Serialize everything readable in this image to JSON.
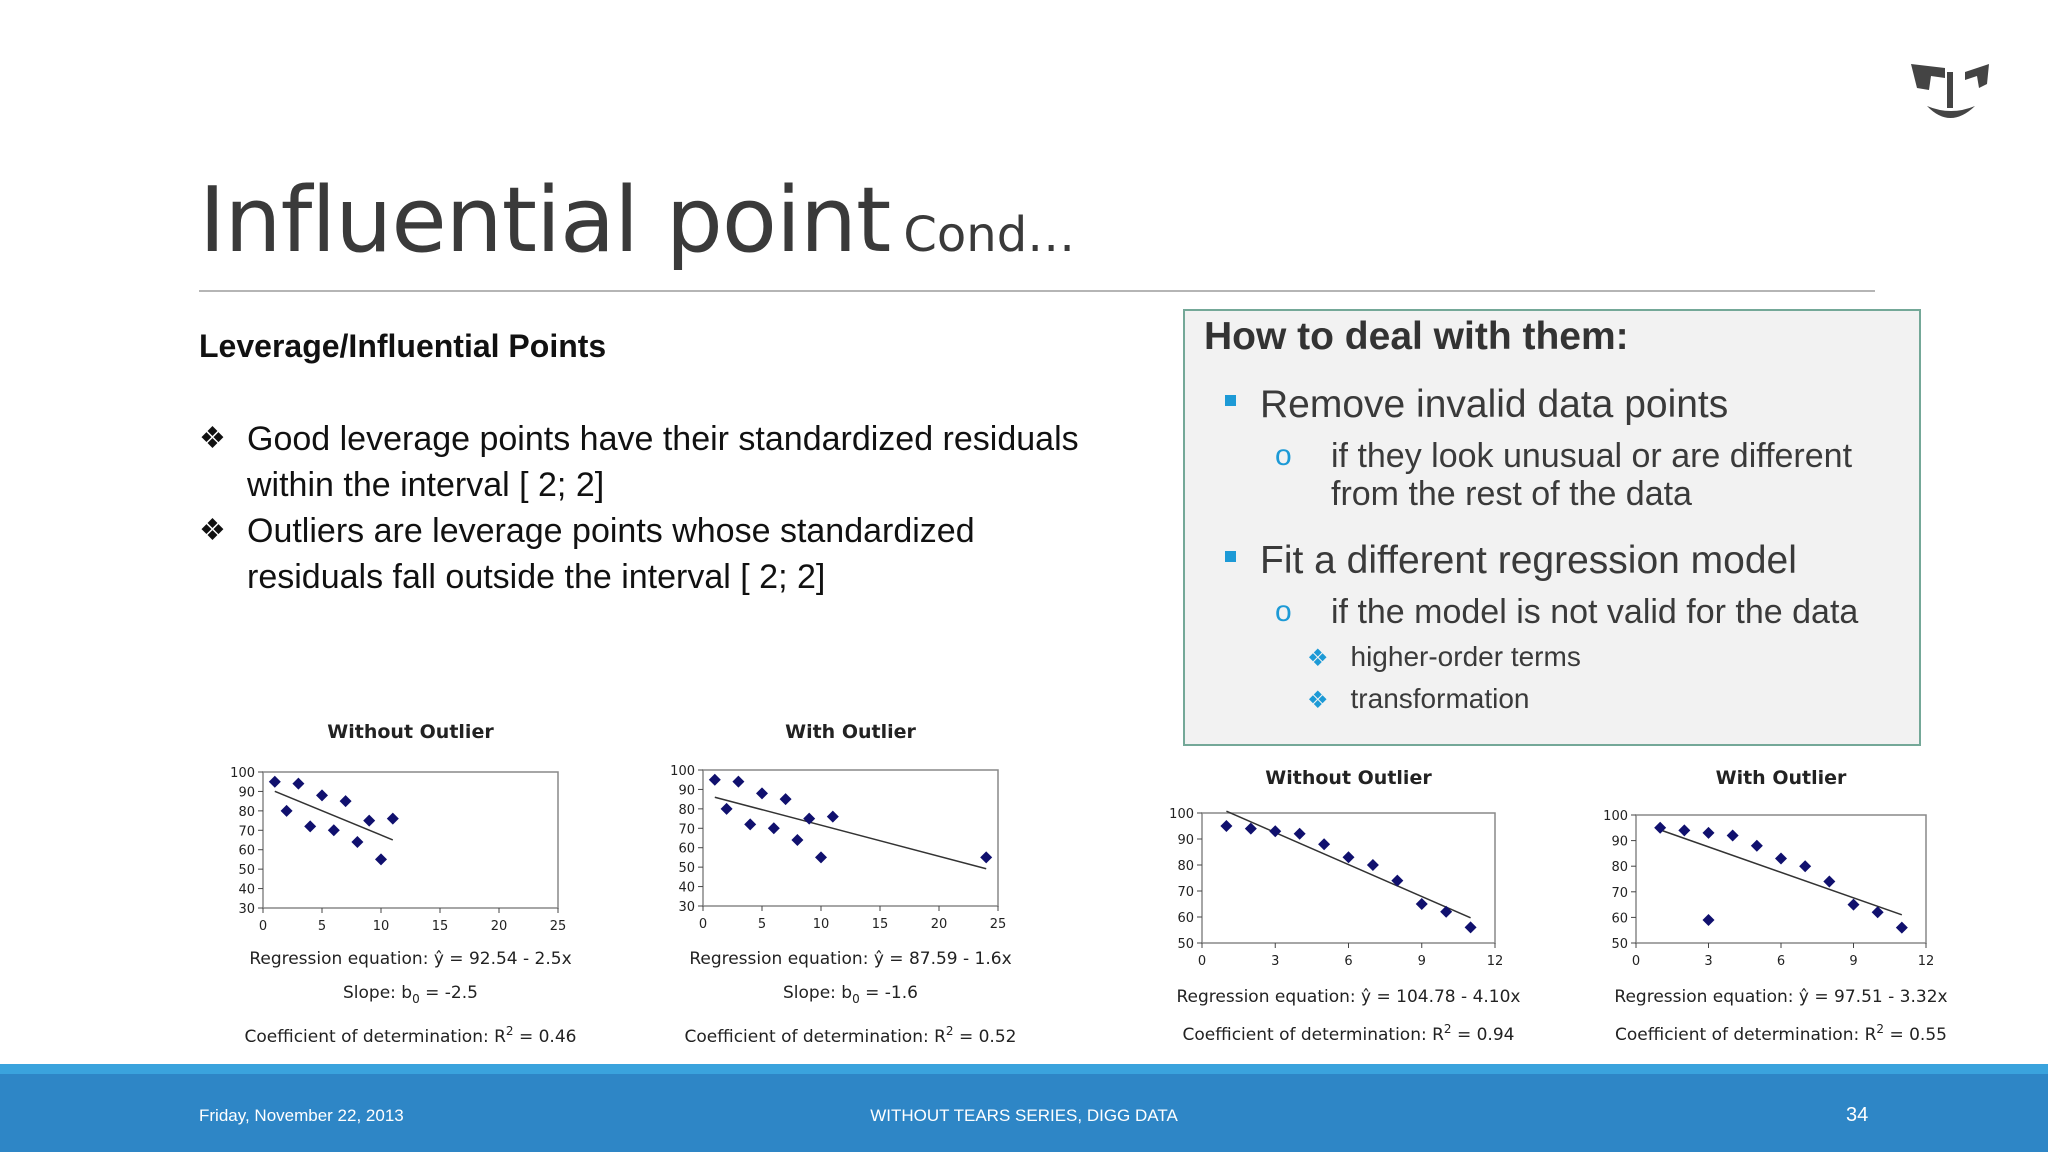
{
  "slide": {
    "title": "Influential point",
    "title_suffix": "Cond…",
    "heading": "Leverage/Influential Points",
    "bullets": [
      {
        "marker": "❖",
        "text": "Good leverage points have their standardized residuals within the interval [ 2; 2]"
      },
      {
        "marker": "❖",
        "text": "Outliers are leverage points whose standardized residuals fall outside the interval [ 2; 2]"
      }
    ],
    "box": {
      "heading": "How to deal with them:",
      "item1": "Remove invalid data points",
      "item1_sub": "if they look unusual or are different from the rest of the data",
      "item2": "Fit a different regression model",
      "item2_sub": "if the model is not valid for the data",
      "item2_sub_a": "higher-order terms",
      "item2_sub_b": "transformation",
      "circle_marker": "o",
      "diamond_marker": "❖"
    }
  },
  "footer": {
    "date": "Friday, November 22, 2013",
    "center": "WITHOUT TEARS SERIES, DIGG DATA",
    "page": "34"
  },
  "colors": {
    "accent": "#2e86c6",
    "accent_light": "#3aa3dd",
    "box_border": "#74a898",
    "marker": "#1d9ad6",
    "point": "#10106e"
  },
  "chart_data": [
    {
      "type": "scatter",
      "title": "Without Outlier",
      "xlim": [
        0,
        25
      ],
      "ylim": [
        30,
        100
      ],
      "xticks": [
        0,
        5,
        10,
        15,
        20,
        25
      ],
      "yticks": [
        30,
        40,
        50,
        60,
        70,
        80,
        90,
        100
      ],
      "x": [
        1,
        2,
        3,
        4,
        5,
        6,
        7,
        8,
        9,
        10,
        11
      ],
      "y": [
        95,
        80,
        94,
        72,
        88,
        70,
        85,
        64,
        75,
        55,
        76
      ],
      "fit": {
        "x": [
          1,
          11
        ],
        "y": [
          90.04,
          65.04
        ]
      },
      "equation": "Regression equation: ŷ = 92.54 - 2.5x",
      "slope_label": "Slope: b",
      "slope_sub": "0",
      "slope_value": " = -2.5",
      "r2_label": "Coefficient of determination: R",
      "r2_sup": "2",
      "r2_value": " = 0.46"
    },
    {
      "type": "scatter",
      "title": "With Outlier",
      "xlim": [
        0,
        25
      ],
      "ylim": [
        30,
        100
      ],
      "xticks": [
        0,
        5,
        10,
        15,
        20,
        25
      ],
      "yticks": [
        30,
        40,
        50,
        60,
        70,
        80,
        90,
        100
      ],
      "x": [
        1,
        2,
        3,
        4,
        5,
        6,
        7,
        8,
        9,
        10,
        11,
        24
      ],
      "y": [
        95,
        80,
        94,
        72,
        88,
        70,
        85,
        64,
        75,
        55,
        76,
        55
      ],
      "fit": {
        "x": [
          1,
          24
        ],
        "y": [
          85.99,
          49.19
        ]
      },
      "equation": "Regression equation: ŷ = 87.59 - 1.6x",
      "slope_label": "Slope: b",
      "slope_sub": "0",
      "slope_value": " = -1.6",
      "r2_label": "Coefficient of determination: R",
      "r2_sup": "2",
      "r2_value": " = 0.52"
    },
    {
      "type": "scatter",
      "title": "Without Outlier",
      "xlim": [
        0,
        12
      ],
      "ylim": [
        50,
        100
      ],
      "xticks": [
        0,
        3,
        6,
        9,
        12
      ],
      "yticks": [
        50,
        60,
        70,
        80,
        90,
        100
      ],
      "x": [
        1,
        2,
        3,
        4,
        5,
        6,
        7,
        8,
        9,
        10,
        11
      ],
      "y": [
        95,
        94,
        93,
        92,
        88,
        83,
        80,
        74,
        65,
        62,
        56
      ],
      "fit": {
        "x": [
          1,
          11
        ],
        "y": [
          100.68,
          59.68
        ]
      },
      "equation": "Regression equation: ŷ = 104.78 - 4.10x",
      "r2_label": "Coefficient of determination: R",
      "r2_sup": "2",
      "r2_value": " = 0.94"
    },
    {
      "type": "scatter",
      "title": "With Outlier",
      "xlim": [
        0,
        12
      ],
      "ylim": [
        50,
        100
      ],
      "xticks": [
        0,
        3,
        6,
        9,
        12
      ],
      "yticks": [
        50,
        60,
        70,
        80,
        90,
        100
      ],
      "x": [
        1,
        2,
        3,
        4,
        5,
        6,
        7,
        8,
        9,
        10,
        11,
        3
      ],
      "y": [
        95,
        94,
        93,
        92,
        88,
        83,
        80,
        74,
        65,
        62,
        56,
        59
      ],
      "fit": {
        "x": [
          1,
          11
        ],
        "y": [
          94.19,
          61.0
        ]
      },
      "equation": "Regression equation: ŷ = 97.51 - 3.32x",
      "r2_label": "Coefficient of determination: R",
      "r2_sup": "2",
      "r2_value": " = 0.55"
    }
  ]
}
